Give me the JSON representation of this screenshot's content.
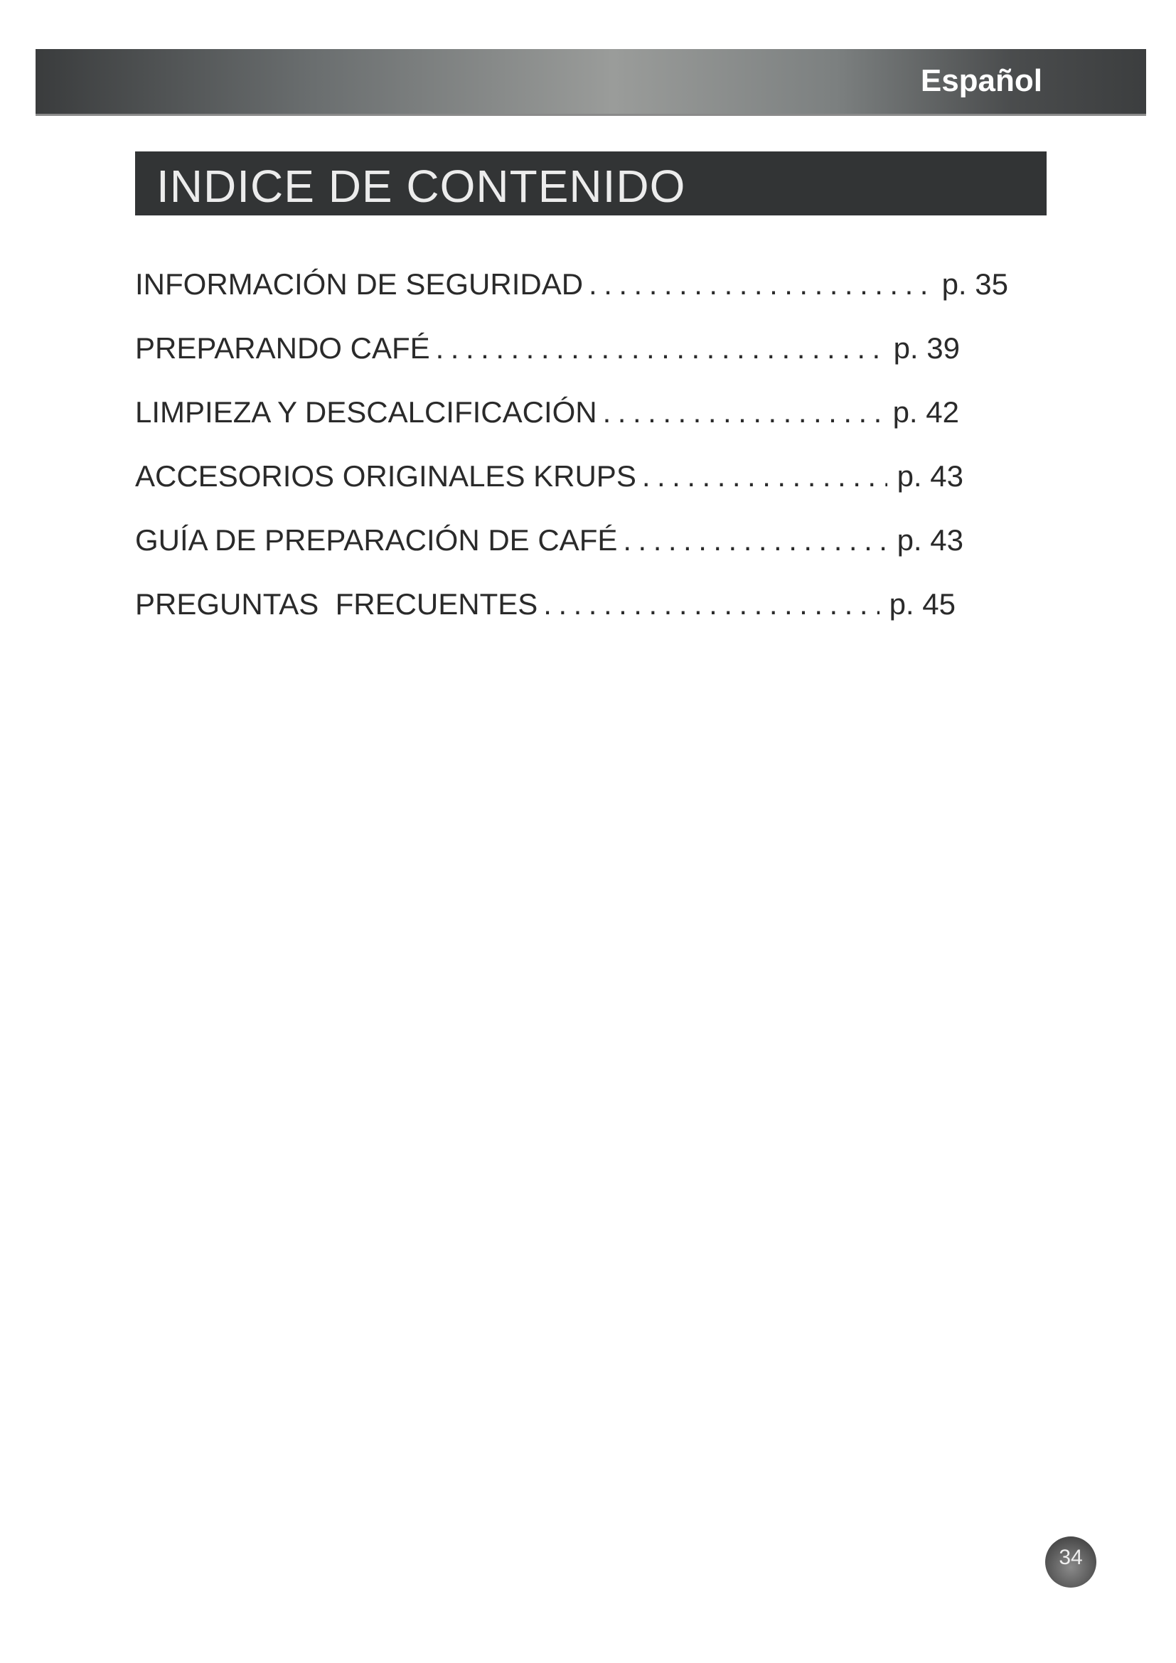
{
  "header": {
    "language": "Español"
  },
  "title": "INDICE DE CONTENIDO",
  "toc": [
    {
      "label": "INFORMACIÓN DE SEGURIDAD",
      "page": "p. 35"
    },
    {
      "label": "PREPARANDO CAFÉ",
      "page": "p. 39"
    },
    {
      "label": "LIMPIEZA Y DESCALCIFICACIÓN",
      "page": "p. 42"
    },
    {
      "label": "ACCESORIOS ORIGINALES KRUPS",
      "page": "p. 43"
    },
    {
      "label": "GUÍA DE PREPARACIÓN DE CAFÉ",
      "page": "p. 43"
    },
    {
      "label": "PREGUNTAS  FRECUENTES",
      "page": "p. 45"
    }
  ],
  "page_number": "34"
}
